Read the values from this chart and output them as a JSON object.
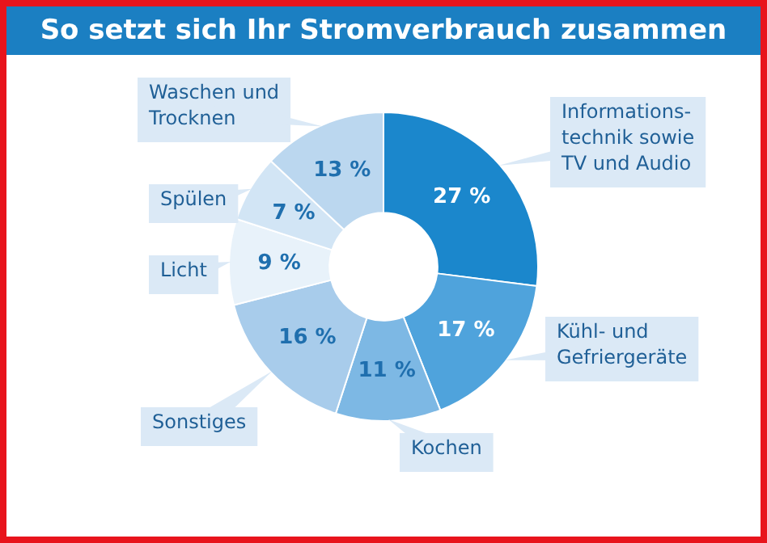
{
  "chart_data": {
    "type": "donut",
    "title": "So setzt sich Ihr Stromverbrauch zusammen",
    "categories": [
      "Informations-technik sowie TV und Audio",
      "Kühl- und Gefriergeräte",
      "Kochen",
      "Sonstiges",
      "Licht",
      "Spülen",
      "Waschen und Trocknen"
    ],
    "values": [
      27,
      17,
      11,
      16,
      9,
      7,
      13
    ],
    "value_labels": [
      "27 %",
      "17 %",
      "11 %",
      "16 %",
      "9 %",
      "7 %",
      "13 %"
    ],
    "colors": [
      "#1b87cc",
      "#4fa3dc",
      "#7db8e4",
      "#a8cceb",
      "#e8f2fa",
      "#d2e5f5",
      "#bbd7ef"
    ],
    "legend": false
  }
}
